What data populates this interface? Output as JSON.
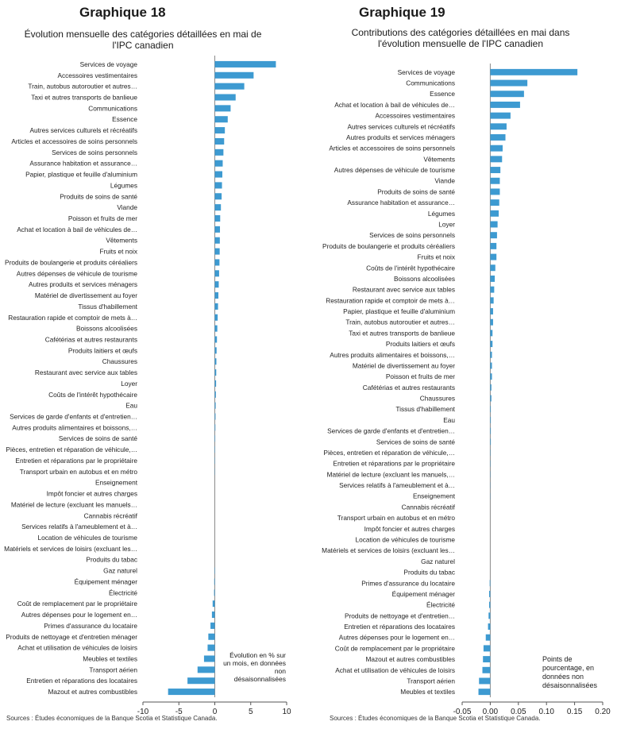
{
  "left": {
    "heading": "Graphique 18",
    "subtitle_line1": "Évolution mensuelle des catégories détaillées en mai de",
    "subtitle_line2": "l'IPC canadien",
    "annotation": [
      "Évolution en % sur",
      "un mois, en données",
      "non",
      "désaisonnalisées"
    ],
    "source": "Sources : Études économiques de la Banque Scotia et Statistique Canada."
  },
  "right": {
    "heading": "Graphique 19",
    "subtitle_line1": "Contributions des catégories détaillées en mai dans",
    "subtitle_line2": "l'évolution mensuelle de l'IPC canadien",
    "annotation": [
      "Points de",
      "pourcentage, en",
      "données non",
      "désaisonnalisées"
    ],
    "source": "Sources : Études économiques de la Banque Scotia et Statistique Canada."
  },
  "colors": {
    "bar": "#3d9ad1",
    "axis": "#888888",
    "text": "#1a1a1a"
  },
  "chart_data": [
    {
      "type": "bar",
      "orientation": "horizontal",
      "title": "Graphique 18",
      "xlim": [
        -10,
        10
      ],
      "xticks": [
        "-10",
        "-5",
        "0",
        "5",
        "10"
      ],
      "xtick_values": [
        -10,
        -5,
        0,
        5,
        10
      ],
      "categories": [
        "Services de voyage",
        "Accessoires vestimentaires",
        "Train, autobus autoroutier et autres…",
        "Taxi et autres transports de banlieue",
        "Communications",
        "Essence",
        "Autres services culturels et récréatifs",
        "Articles et accessoires de soins personnels",
        "Services de soins personnels",
        "Assurance habitation et assurance…",
        "Papier, plastique et feuille d'aluminium",
        "Légumes",
        "Produits de soins de santé",
        "Viande",
        "Poisson et fruits de mer",
        "Achat et location à bail de véhicules de…",
        "Vêtements",
        "Fruits et noix",
        "Produits de boulangerie et produits céréaliers",
        "Autres dépenses de véhicule de tourisme",
        "Autres produits et services ménagers",
        "Matériel de divertissement au foyer",
        "Tissus d'habillement",
        "Restauration rapide et comptoir de mets à…",
        "Boissons alcoolisées",
        "Cafétérias et autres restaurants",
        "Produits laitiers et œufs",
        "Chaussures",
        "Restaurant avec service aux tables",
        "Loyer",
        "Coûts de l'intérêt hypothécaire",
        "Eau",
        "Services de garde d'enfants et d'entretien…",
        "Autres produits alimentaires et boissons,…",
        "Services de soins de santé",
        "Pièces, entretien et réparation de véhicule,…",
        "Entretien et réparations par le propriétaire",
        "Transport urbain en autobus et en métro",
        "Enseignement",
        "Impôt foncier et autres charges",
        "Matériel de lecture (excluant les manuels…",
        "Cannabis récréatif",
        "Services relatifs à l'ameublement et à…",
        "Location de véhicules de tourisme",
        "Matériels et services de loisirs (excluant les…",
        "Produits du tabac",
        "Gaz naturel",
        "Équipement ménager",
        "Électricité",
        "Coût de remplacement par le propriétaire",
        "Autres dépenses pour le logement en…",
        "Primes d'assurance du locataire",
        "Produits de nettoyage et d'entretien ménager",
        "Achat et utilisation de véhicules de loisirs",
        "Meubles et textiles",
        "Transport aérien",
        "Entretien et réparations des locataires",
        "Mazout et autres combustibles"
      ],
      "values": [
        8.5,
        5.4,
        4.1,
        2.9,
        2.2,
        1.8,
        1.4,
        1.3,
        1.2,
        1.1,
        1.05,
        1.0,
        0.95,
        0.85,
        0.75,
        0.72,
        0.7,
        0.68,
        0.65,
        0.6,
        0.55,
        0.5,
        0.45,
        0.4,
        0.35,
        0.3,
        0.25,
        0.22,
        0.2,
        0.18,
        0.15,
        0.12,
        0.1,
        0.08,
        0.06,
        0.05,
        0.04,
        0.03,
        0.02,
        0.01,
        0.0,
        0.0,
        0.0,
        0.0,
        0.0,
        0.0,
        -0.05,
        -0.08,
        -0.1,
        -0.3,
        -0.4,
        -0.6,
        -0.9,
        -1.0,
        -1.5,
        -2.4,
        -3.8,
        -6.5
      ]
    },
    {
      "type": "bar",
      "orientation": "horizontal",
      "title": "Graphique 19",
      "xlim": [
        -0.05,
        0.2
      ],
      "xticks": [
        "-0.05",
        "0.00",
        "0.05",
        "0.10",
        "0.15",
        "0.20"
      ],
      "xtick_values": [
        -0.05,
        0.0,
        0.05,
        0.1,
        0.15,
        0.2
      ],
      "categories": [
        "Services de voyage",
        "Communications",
        "Essence",
        "Achat et location à bail de véhicules de…",
        "Accessoires vestimentaires",
        "Autres services culturels et récréatifs",
        "Autres produits et services ménagers",
        "Articles et accessoires de soins personnels",
        "Vêtements",
        "Autres dépenses de véhicule de tourisme",
        "Viande",
        "Produits de soins de santé",
        "Assurance habitation et assurance…",
        "Légumes",
        "Loyer",
        "Services de soins personnels",
        "Produits de boulangerie et produits céréaliers",
        "Fruits et noix",
        "Coûts de l'intérêt hypothécaire",
        "Boissons alcoolisées",
        "Restaurant avec service aux tables",
        "Restauration rapide et comptoir de mets à…",
        "Papier, plastique et feuille d'aluminium",
        "Train, autobus autoroutier et autres…",
        "Taxi et autres transports de banlieue",
        "Produits laitiers et œufs",
        "Autres produits alimentaires et boissons,…",
        "Matériel de divertissement au foyer",
        "Poisson et fruits de mer",
        "Cafétérias et autres restaurants",
        "Chaussures",
        "Tissus d'habillement",
        "Eau",
        "Services de garde d'enfants et d'entretien…",
        "Services de soins de santé",
        "Pièces, entretien et réparation de véhicule,…",
        "Entretien et réparations par le propriétaire",
        "Matériel de lecture (excluant les manuels,…",
        "Services relatifs à l'ameublement et à…",
        "Enseignement",
        "Cannabis récréatif",
        "Transport urbain en autobus et en métro",
        "Impôt foncier et autres charges",
        "Location de véhicules de tourisme",
        "Matériels et services de loisirs (excluant les…",
        "Gaz naturel",
        "Produits du tabac",
        "Primes d'assurance du locataire",
        "Équipement ménager",
        "Électricité",
        "Produits de nettoyage et d'entretien…",
        "Entretien et réparations des locataires",
        "Autres dépenses pour le logement en…",
        "Coût de remplacement par le propriétaire",
        "Mazout et autres combustibles",
        "Achat et utilisation de véhicules de loisirs",
        "Transport aérien",
        "Meubles et textiles"
      ],
      "values": [
        0.155,
        0.066,
        0.06,
        0.053,
        0.036,
        0.029,
        0.027,
        0.022,
        0.021,
        0.018,
        0.017,
        0.017,
        0.016,
        0.015,
        0.013,
        0.012,
        0.011,
        0.011,
        0.009,
        0.008,
        0.007,
        0.006,
        0.005,
        0.005,
        0.004,
        0.004,
        0.003,
        0.003,
        0.003,
        0.002,
        0.002,
        0.001,
        0.001,
        0.001,
        0.001,
        0.0005,
        0.0005,
        0.0004,
        0.0003,
        0.0003,
        0.0002,
        0.0002,
        0.0001,
        0.0,
        0.0,
        0.0,
        0.0,
        -0.001,
        -0.002,
        -0.002,
        -0.003,
        -0.004,
        -0.008,
        -0.012,
        -0.013,
        -0.014,
        -0.02,
        -0.021
      ]
    }
  ]
}
